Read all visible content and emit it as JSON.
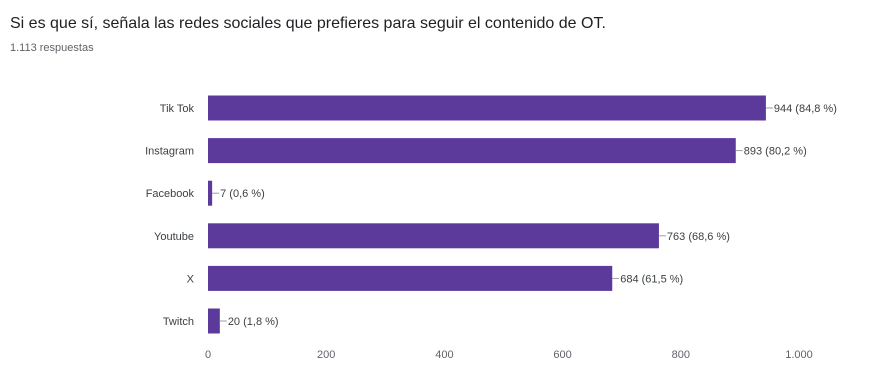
{
  "header": {
    "question": "Si es que sí, señala las redes sociales que prefieres para seguir el contenido de OT.",
    "responses": "1.113 respuestas"
  },
  "colors": {
    "bar": "#5b3a9b",
    "axis_text": "#5f6368",
    "label_text": "#3c4043",
    "leader": "#9e9e9e"
  },
  "chart_data": {
    "type": "bar",
    "orientation": "horizontal",
    "categories": [
      "Tik Tok",
      "Instagram",
      "Facebook",
      "Youtube",
      "X",
      "Twitch"
    ],
    "values": [
      944,
      893,
      7,
      763,
      684,
      20
    ],
    "data_labels": [
      "944 (84,8 %)",
      "893 (80,2 %)",
      "7 (0,6 %)",
      "763 (68,6 %)",
      "684 (61,5 %)",
      "20 (1,8 %)"
    ],
    "xlim": [
      0,
      1000
    ],
    "xticks": [
      0,
      200,
      400,
      600,
      800,
      1000
    ],
    "xtick_labels": [
      "0",
      "200",
      "400",
      "600",
      "800",
      "1.000"
    ],
    "grid": false,
    "legend": "none"
  }
}
